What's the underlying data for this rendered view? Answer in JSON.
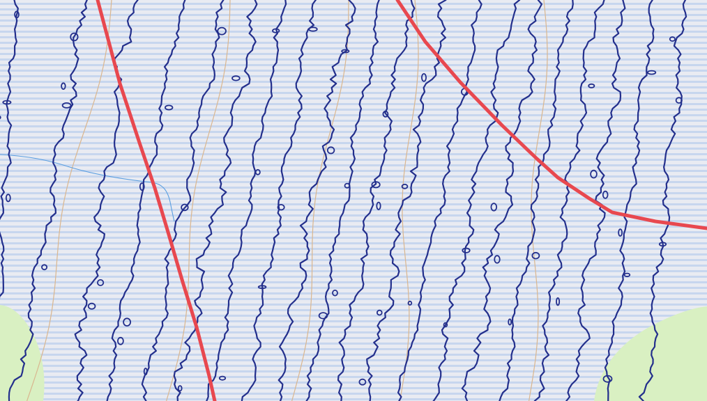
{
  "map": {
    "colors": {
      "background": "#e9ebf2",
      "stripe": "#c7d6ee",
      "contour": "#232f8c",
      "road": "#e8484f",
      "track": "#d9b68f",
      "stream": "#5a9ee0",
      "vegetation": "#d9f0c2"
    },
    "layers": [
      "background-stripes",
      "vegetation-areas",
      "tracks",
      "stream",
      "contour-lines",
      "roads"
    ]
  }
}
